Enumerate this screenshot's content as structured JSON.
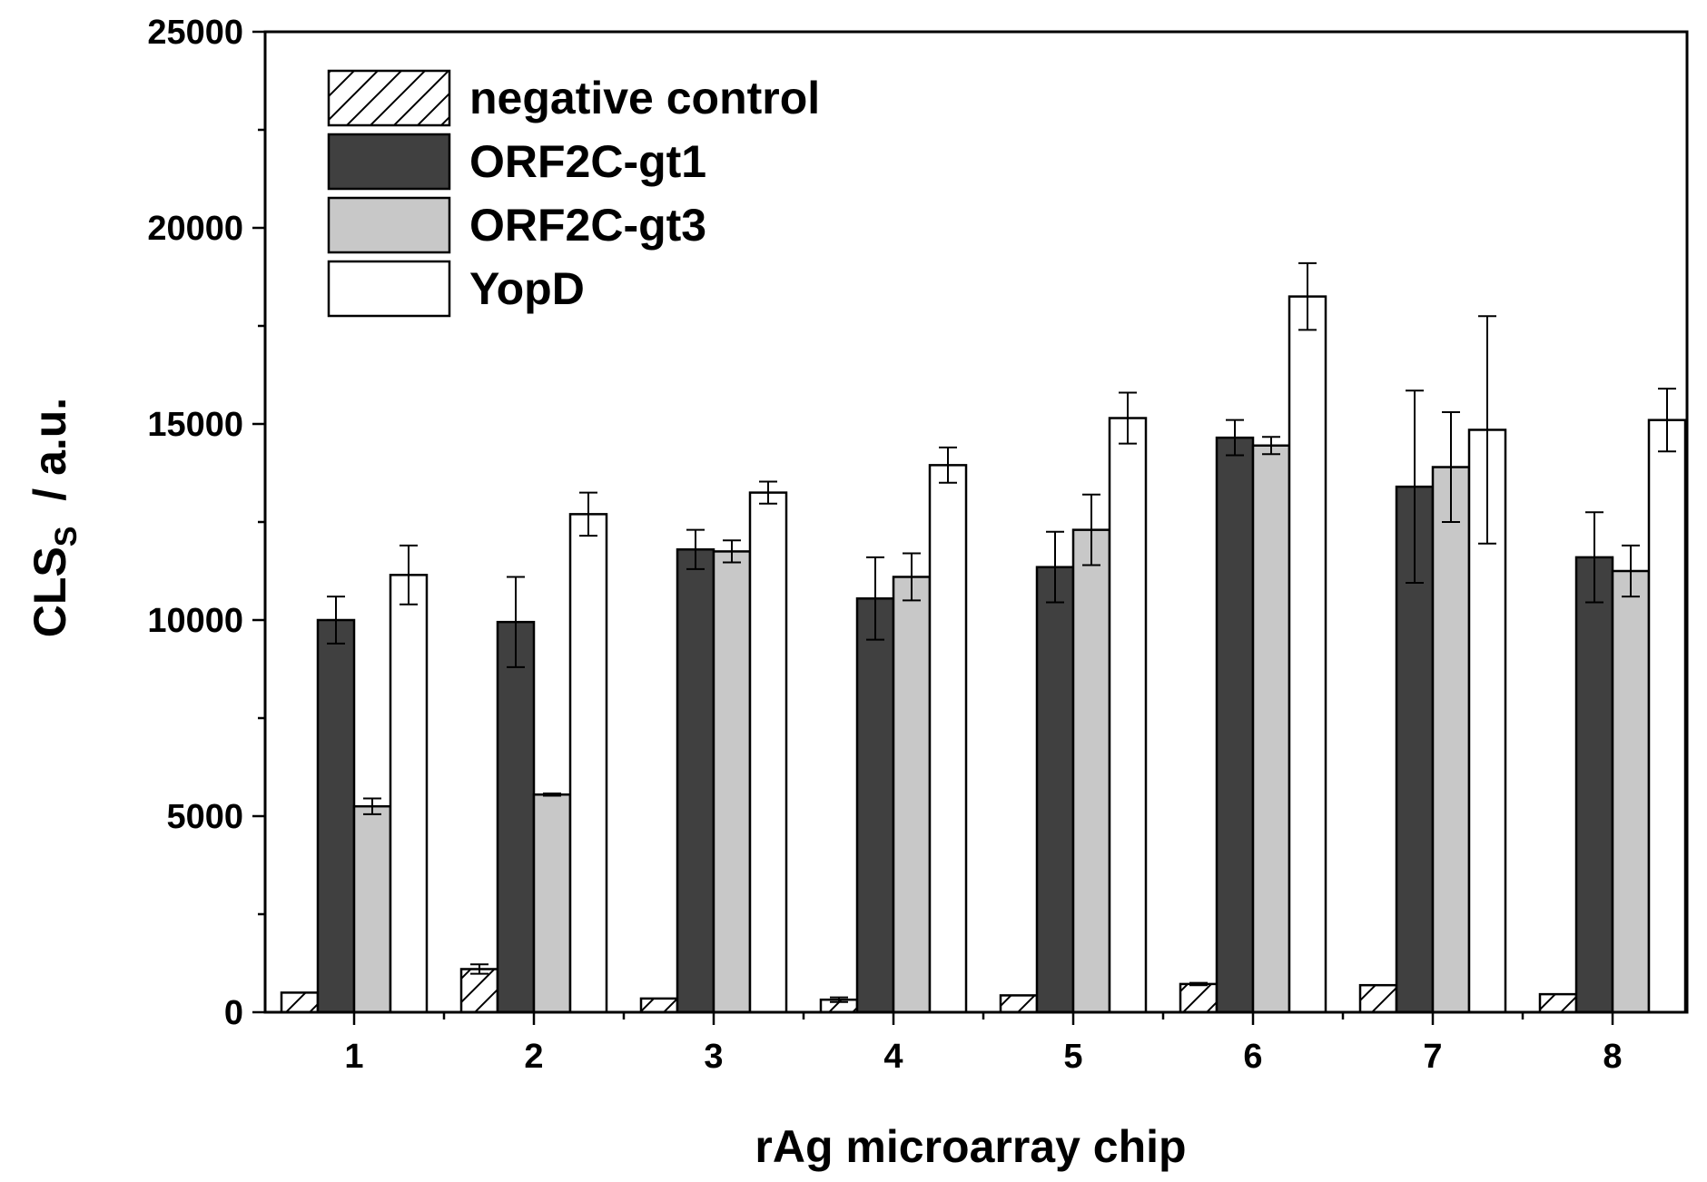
{
  "chart_data": {
    "type": "bar",
    "title": "",
    "xlabel": "rAg microarray chip",
    "ylabel": {
      "main": "CLS",
      "subscript": "S",
      "suffix": "  / a.u."
    },
    "ylim": [
      0,
      25000
    ],
    "yticks": [
      0,
      5000,
      10000,
      15000,
      20000,
      25000
    ],
    "ytick_labels": [
      "0",
      "5000",
      "10000",
      "15000",
      "20000",
      "25000"
    ],
    "categories": [
      "1",
      "2",
      "3",
      "4",
      "5",
      "6",
      "7",
      "8"
    ],
    "legend_position": "top-left",
    "grid": false,
    "series": [
      {
        "name": "negative control",
        "fill": "#ffffff",
        "pattern": "hatch",
        "values": [
          500,
          1100,
          350,
          320,
          430,
          720,
          690,
          460
        ],
        "errors": [
          0,
          120,
          0,
          60,
          0,
          30,
          0,
          0
        ]
      },
      {
        "name": "ORF2C-gt1",
        "fill": "#404040",
        "pattern": "solid",
        "values": [
          10000,
          9950,
          11800,
          10550,
          11350,
          14650,
          13400,
          11600
        ],
        "errors": [
          600,
          1150,
          500,
          1050,
          900,
          450,
          2450,
          1150
        ]
      },
      {
        "name": "ORF2C-gt3",
        "fill": "#c8c8c8",
        "pattern": "solid",
        "values": [
          5250,
          5550,
          11750,
          11100,
          12300,
          14450,
          13900,
          11250
        ],
        "errors": [
          200,
          30,
          280,
          600,
          900,
          220,
          1400,
          650
        ]
      },
      {
        "name": "YopD",
        "fill": "#ffffff",
        "pattern": "solid",
        "values": [
          11150,
          12700,
          13250,
          13950,
          15150,
          18250,
          14850,
          15100
        ],
        "errors": [
          750,
          550,
          280,
          450,
          650,
          850,
          2900,
          800
        ]
      }
    ]
  }
}
